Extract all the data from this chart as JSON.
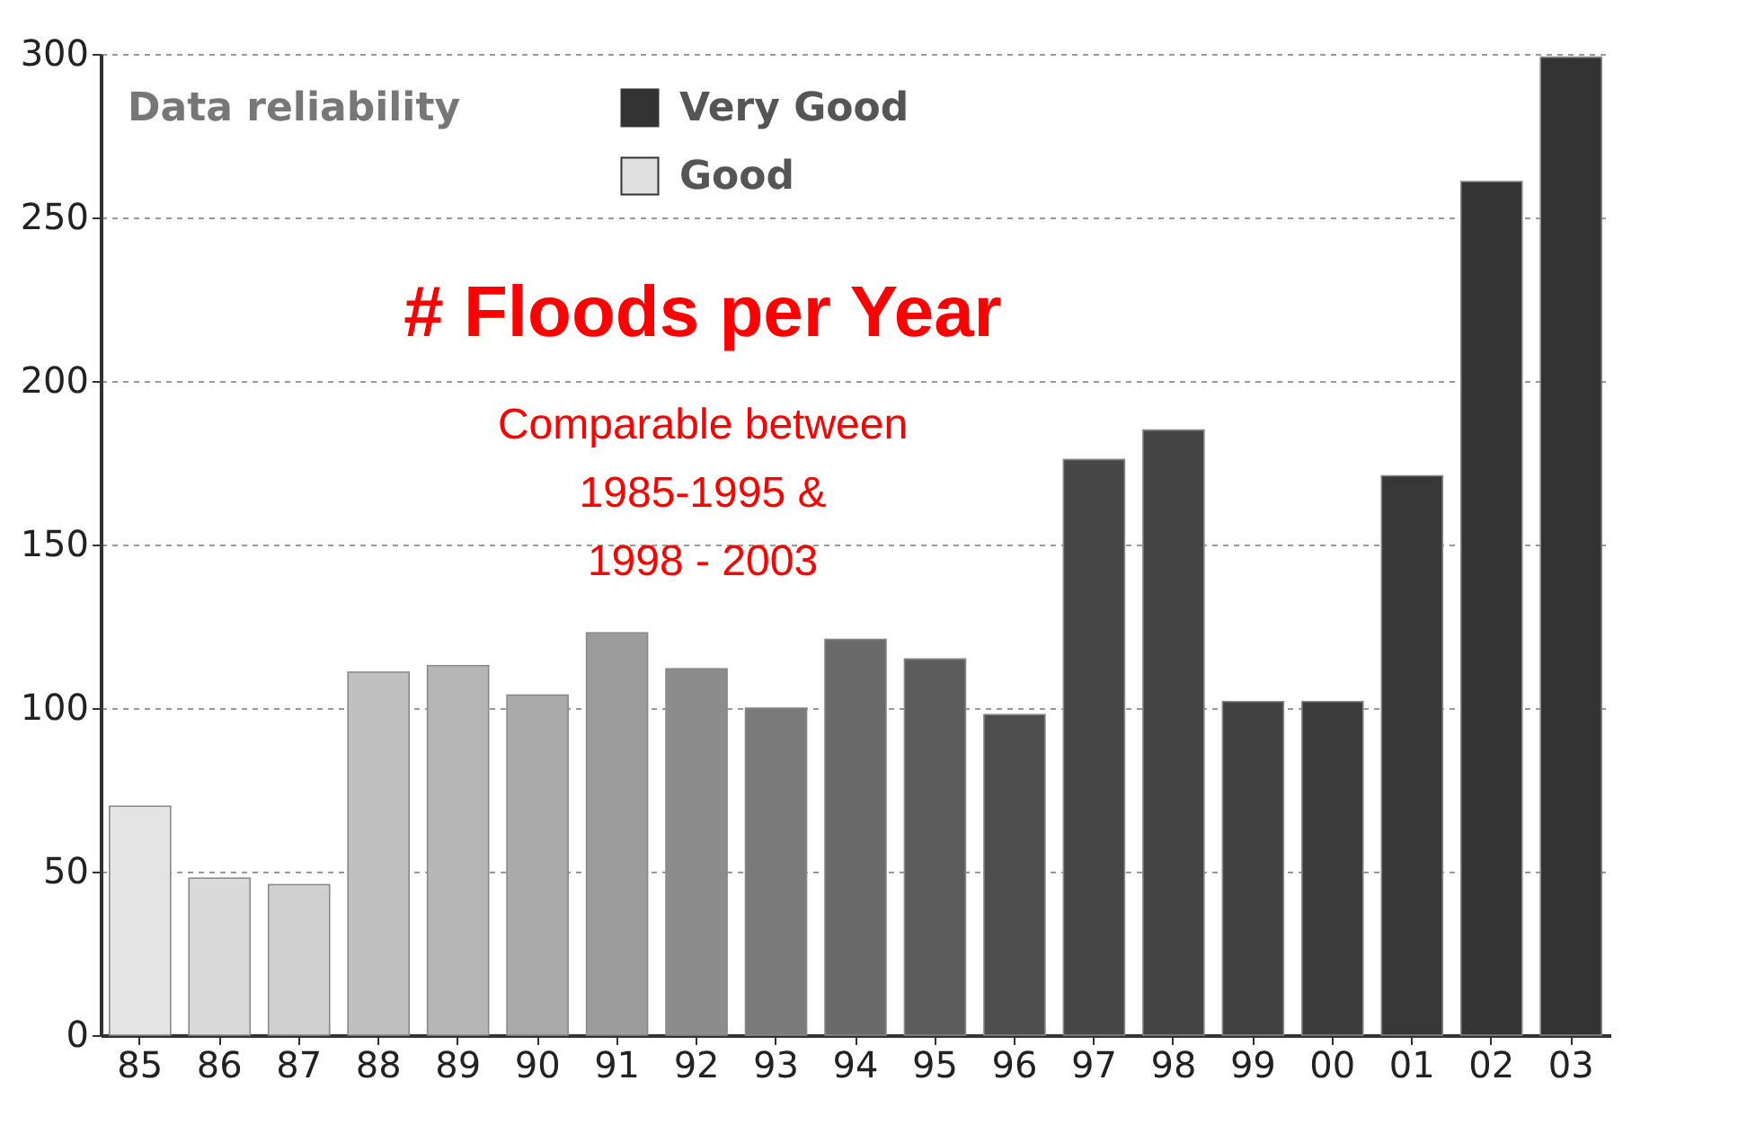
{
  "chart_data": {
    "type": "bar",
    "title": "# Floods per Year",
    "subtitle": "Comparable between\n1985-1995 &\n1998 - 2003",
    "legend_title": "Data reliability",
    "categories": [
      "85",
      "86",
      "87",
      "88",
      "89",
      "90",
      "91",
      "92",
      "93",
      "94",
      "95",
      "96",
      "97",
      "98",
      "99",
      "00",
      "01",
      "02",
      "03"
    ],
    "series": [
      {
        "name": "Very Good",
        "color": "#333333",
        "values": [
          null,
          null,
          null,
          null,
          null,
          null,
          null,
          null,
          null,
          null,
          null,
          null,
          176,
          185,
          102,
          102,
          171,
          261,
          299
        ],
        "colors": [
          null,
          null,
          null,
          null,
          null,
          null,
          null,
          null,
          null,
          null,
          null,
          null,
          "#464646",
          "#444444",
          "#414141",
          "#3c3c3c",
          "#383838",
          "#353535",
          "#333333"
        ]
      },
      {
        "name": "Good",
        "color": "#e0e0e0",
        "values": [
          70,
          48,
          46,
          111,
          113,
          104,
          123,
          112,
          100,
          121,
          115,
          98,
          null,
          null,
          null,
          null,
          null,
          null,
          null
        ],
        "colors": [
          "#e4e4e4",
          "#dadada",
          "#d0d0d0",
          "#c0c0c0",
          "#b6b6b6",
          "#aaaaaa",
          "#9c9c9c",
          "#8c8c8c",
          "#7a7a7a",
          "#6a6a6a",
          "#5c5c5c",
          "#4e4e4e",
          null,
          null,
          null,
          null,
          null,
          null,
          null
        ]
      }
    ],
    "ylim": [
      0,
      300
    ],
    "yticks": [
      0,
      50,
      100,
      150,
      200,
      250,
      300
    ],
    "grid": "y",
    "legend": "top left"
  }
}
